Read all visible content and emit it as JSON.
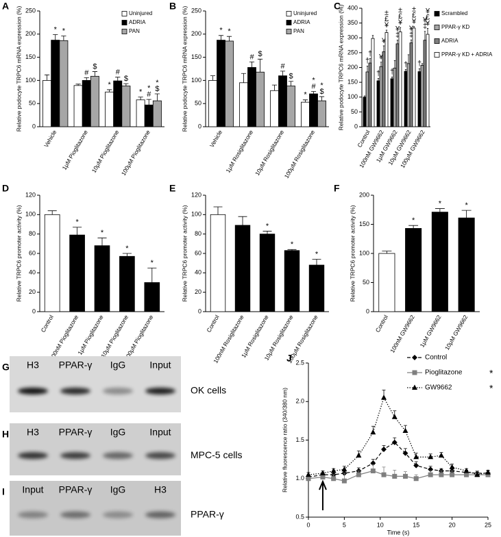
{
  "chart_data": [
    {
      "type": "bar",
      "panel": "A",
      "ylabel": "Relative podocyte TRPC6 mRNA expression (%)",
      "categories": [
        "Vehicle",
        "1μM Pioglitazone",
        "10μM Pioglitazone",
        "100μM Pioglitazone"
      ],
      "series": [
        {
          "name": "Uninjured",
          "color": "#ffffff",
          "values": [
            100,
            89,
            75,
            58
          ],
          "errors": [
            12,
            3,
            5,
            6
          ],
          "annotations": [
            null,
            null,
            [
              "*"
            ],
            [
              "*"
            ]
          ]
        },
        {
          "name": "ADRIA",
          "color": "#000000",
          "values": [
            187,
            100,
            99,
            47
          ],
          "errors": [
            12,
            6,
            8,
            12
          ],
          "annotations": [
            [
              "*"
            ],
            [
              "#"
            ],
            [
              "#"
            ],
            [
              "*",
              "#"
            ]
          ]
        },
        {
          "name": "PAN",
          "color": "#a6a6a6",
          "values": [
            186,
            109,
            88,
            56
          ],
          "errors": [
            10,
            10,
            5,
            15
          ],
          "annotations": [
            [
              "*"
            ],
            [
              "$"
            ],
            [
              "$"
            ],
            [
              "*",
              "$"
            ]
          ]
        }
      ],
      "ylim": [
        0,
        250
      ],
      "yticks": [
        0,
        50,
        100,
        150,
        200,
        250
      ],
      "legend": "upper right"
    },
    {
      "type": "bar",
      "panel": "B",
      "ylabel": "Relative podocyte TRPC6 mRNA expression (%)",
      "categories": [
        "Vehicle",
        "1μM Rosiglitazone",
        "10μM Rosiglitazone",
        "100μM Rosiglitazone"
      ],
      "series": [
        {
          "name": "Uninjured",
          "color": "#ffffff",
          "values": [
            100,
            95,
            78,
            53
          ],
          "errors": [
            10,
            20,
            12,
            5
          ],
          "annotations": [
            null,
            null,
            null,
            [
              "*"
            ]
          ]
        },
        {
          "name": "ADRIA",
          "color": "#000000",
          "values": [
            187,
            128,
            110,
            71
          ],
          "errors": [
            10,
            12,
            10,
            5
          ],
          "annotations": [
            [
              "*"
            ],
            [
              "#"
            ],
            [
              "#"
            ],
            [
              "*",
              "#"
            ]
          ]
        },
        {
          "name": "PAN",
          "color": "#a6a6a6",
          "values": [
            185,
            118,
            88,
            56
          ],
          "errors": [
            10,
            28,
            10,
            9
          ],
          "annotations": [
            [
              "*"
            ],
            [
              "$"
            ],
            [
              "$"
            ],
            [
              "*",
              "$"
            ]
          ]
        }
      ],
      "ylim": [
        0,
        250
      ],
      "yticks": [
        0,
        50,
        100,
        150,
        200,
        250
      ],
      "legend": "upper right"
    },
    {
      "type": "bar",
      "panel": "C",
      "ylabel": "Relative podocyte TRPC6 mRNA expression (%)",
      "categories": [
        "Control",
        "100nM GW9662",
        "1μM GW9662",
        "10μM GW9662",
        "100μM GW9662"
      ],
      "series": [
        {
          "name": "Scrambled",
          "color": "#000000",
          "values": [
            100,
            155,
            162,
            187,
            186
          ],
          "errors": [
            4,
            8,
            6,
            6,
            10
          ],
          "annotations": [
            null,
            [
              "†"
            ],
            [
              "†"
            ],
            [
              "†"
            ],
            [
              "†"
            ]
          ]
        },
        {
          "name": "PPAR-γ KD",
          "color": "#a6a6a6",
          "values": [
            185,
            203,
            198,
            213,
            207
          ],
          "errors": [
            20,
            15,
            25,
            30,
            6
          ],
          "annotations": [
            [
              "†"
            ],
            [
              "¥"
            ],
            null,
            null,
            null
          ]
        },
        {
          "name": "ADRIA",
          "color": "#7f7f7f",
          "values": [
            215,
            253,
            280,
            283,
            292
          ],
          "errors": [
            15,
            20,
            12,
            10,
            30
          ],
          "annotations": [
            [
              "†"
            ],
            [
              "¥"
            ],
            [
              "¥",
              "‡"
            ],
            [
              "¥",
              "‡"
            ],
            [
              "¥",
              "‡"
            ]
          ]
        },
        {
          "name": "PPAR-γ KD + ADRIA",
          "color": "#ffffff",
          "values": [
            298,
            318,
            320,
            333,
            312
          ],
          "errors": [
            10,
            8,
            15,
            5,
            20
          ],
          "annotations": [
            null,
            [
              "±",
              "£",
              "¥"
            ],
            [
              "±",
              "£",
              "¥"
            ],
            [
              "±",
              "£",
              "¥"
            ],
            [
              "¥",
              "£",
              "¥"
            ]
          ]
        }
      ],
      "ylim": [
        0,
        400
      ],
      "yticks": [
        0,
        50,
        100,
        150,
        200,
        250,
        300,
        350,
        400
      ],
      "legend": "right"
    },
    {
      "type": "bar",
      "panel": "D",
      "ylabel": "Relative TRPC6 promoter activity (%)",
      "categories": [
        "Control",
        "100nM Pioglitazone",
        "1μM Pioglitazone",
        "10μM Pioglitazone",
        "100μM Pioglitazone"
      ],
      "series": [
        {
          "colors": [
            "#ffffff",
            "#000000",
            "#000000",
            "#000000",
            "#000000"
          ],
          "values": [
            100,
            79,
            68,
            57,
            30
          ],
          "errors": [
            4,
            8,
            8,
            3,
            15
          ],
          "annotations": [
            null,
            [
              "*"
            ],
            [
              "*"
            ],
            [
              "*"
            ],
            [
              "*"
            ]
          ]
        }
      ],
      "ylim": [
        0,
        120
      ],
      "yticks": [
        0,
        20,
        40,
        60,
        80,
        100,
        120
      ]
    },
    {
      "type": "bar",
      "panel": "E",
      "ylabel": "Relative TRPC6 promoter activity (%)",
      "categories": [
        "Control",
        "100nM Rosiglitazone",
        "1μM Rosiglitazone",
        "10μM Rosiglitazone",
        "100μM Rosiglitazone"
      ],
      "series": [
        {
          "colors": [
            "#ffffff",
            "#000000",
            "#000000",
            "#000000",
            "#000000"
          ],
          "values": [
            100,
            89,
            80,
            63,
            48
          ],
          "errors": [
            8,
            9,
            3,
            1,
            6
          ],
          "annotations": [
            null,
            null,
            [
              "*"
            ],
            [
              "*"
            ],
            [
              "*"
            ]
          ]
        }
      ],
      "ylim": [
        0,
        120
      ],
      "yticks": [
        0,
        20,
        40,
        60,
        80,
        100,
        120
      ]
    },
    {
      "type": "bar",
      "panel": "F",
      "ylabel": "Relative TRPC6 promoter activity (%)",
      "categories": [
        "Control",
        "100nM GW9662",
        "1μM GW9662",
        "10μM GW9662"
      ],
      "series": [
        {
          "colors": [
            "#ffffff",
            "#000000",
            "#000000",
            "#000000"
          ],
          "values": [
            100,
            143,
            171,
            161
          ],
          "errors": [
            4,
            5,
            6,
            13
          ],
          "annotations": [
            null,
            [
              "*"
            ],
            [
              "*"
            ],
            [
              "*"
            ]
          ]
        }
      ],
      "ylim": [
        0,
        200
      ],
      "yticks": [
        0,
        50,
        100,
        150,
        200
      ]
    },
    {
      "type": "line",
      "panel": "J",
      "xlabel": "Time (s)",
      "ylabel": "Relative fluorescence ratio (340/380 nm)",
      "x": [
        0,
        2,
        3.5,
        5,
        7,
        9,
        10.5,
        12,
        13.5,
        15,
        17,
        18.5,
        20,
        22,
        23.5,
        25
      ],
      "series": [
        {
          "name": "Control",
          "color": "#000000",
          "dash": "dashed",
          "marker": "diamond",
          "values": [
            1.02,
            1.05,
            1.05,
            1.07,
            1.1,
            1.2,
            1.38,
            1.47,
            1.33,
            1.17,
            1.12,
            1.1,
            1.1,
            1.08,
            1.07,
            1.07
          ],
          "errors": [
            0.03,
            0.03,
            0.03,
            0.03,
            0.04,
            0.05,
            0.05,
            0.06,
            0.06,
            0.05,
            0.04,
            0.03,
            0.03,
            0.03,
            0.03,
            0.03
          ]
        },
        {
          "name": "Pioglitazone",
          "color": "#7f7f7f",
          "dash": "solid",
          "marker": "square",
          "annotation": "*",
          "values": [
            1.0,
            1.02,
            1.0,
            0.97,
            1.05,
            1.1,
            1.05,
            1.03,
            1.03,
            1.0,
            1.05,
            1.05,
            1.05,
            1.05,
            1.05,
            1.05
          ],
          "errors": [
            0.05,
            0.05,
            0.05,
            0.1,
            0.05,
            0.08,
            0.1,
            0.08,
            0.06,
            0.05,
            0.05,
            0.05,
            0.05,
            0.05,
            0.05,
            0.05
          ]
        },
        {
          "name": "GW9662",
          "color": "#000000",
          "dash": "dotted",
          "marker": "triangle",
          "annotation": "*",
          "values": [
            1.05,
            1.07,
            1.1,
            1.12,
            1.3,
            1.6,
            2.05,
            1.8,
            1.62,
            1.28,
            1.28,
            1.3,
            1.15,
            1.1,
            1.05,
            1.08
          ],
          "errors": [
            0.03,
            0.03,
            0.03,
            0.04,
            0.06,
            0.08,
            0.1,
            0.08,
            0.07,
            0.05,
            0.04,
            0.04,
            0.04,
            0.03,
            0.03,
            0.03
          ]
        }
      ],
      "xlim": [
        0,
        25
      ],
      "xticks": [
        0,
        5,
        10,
        15,
        20,
        25
      ],
      "ylim": [
        0.5,
        2.5
      ],
      "yticks": [
        0.5,
        {
          "value": 1,
          "label": "1.0"
        },
        1.5,
        {
          "value": 2,
          "label": "2.0"
        },
        2.5
      ],
      "arrow_x": 2,
      "legend": "upper right"
    }
  ],
  "blots": [
    {
      "panel": "G",
      "lanes": [
        "H3",
        "PPAR-γ",
        "IgG",
        "Input"
      ],
      "label": "OK cells"
    },
    {
      "panel": "H",
      "lanes": [
        "H3",
        "PPAR-γ",
        "IgG",
        "Input"
      ],
      "label": "MPC-5 cells"
    },
    {
      "panel": "I",
      "lanes": [
        "Input",
        "PPAR-γ",
        "IgG",
        "H3"
      ],
      "label": "PPAR-γ"
    }
  ]
}
